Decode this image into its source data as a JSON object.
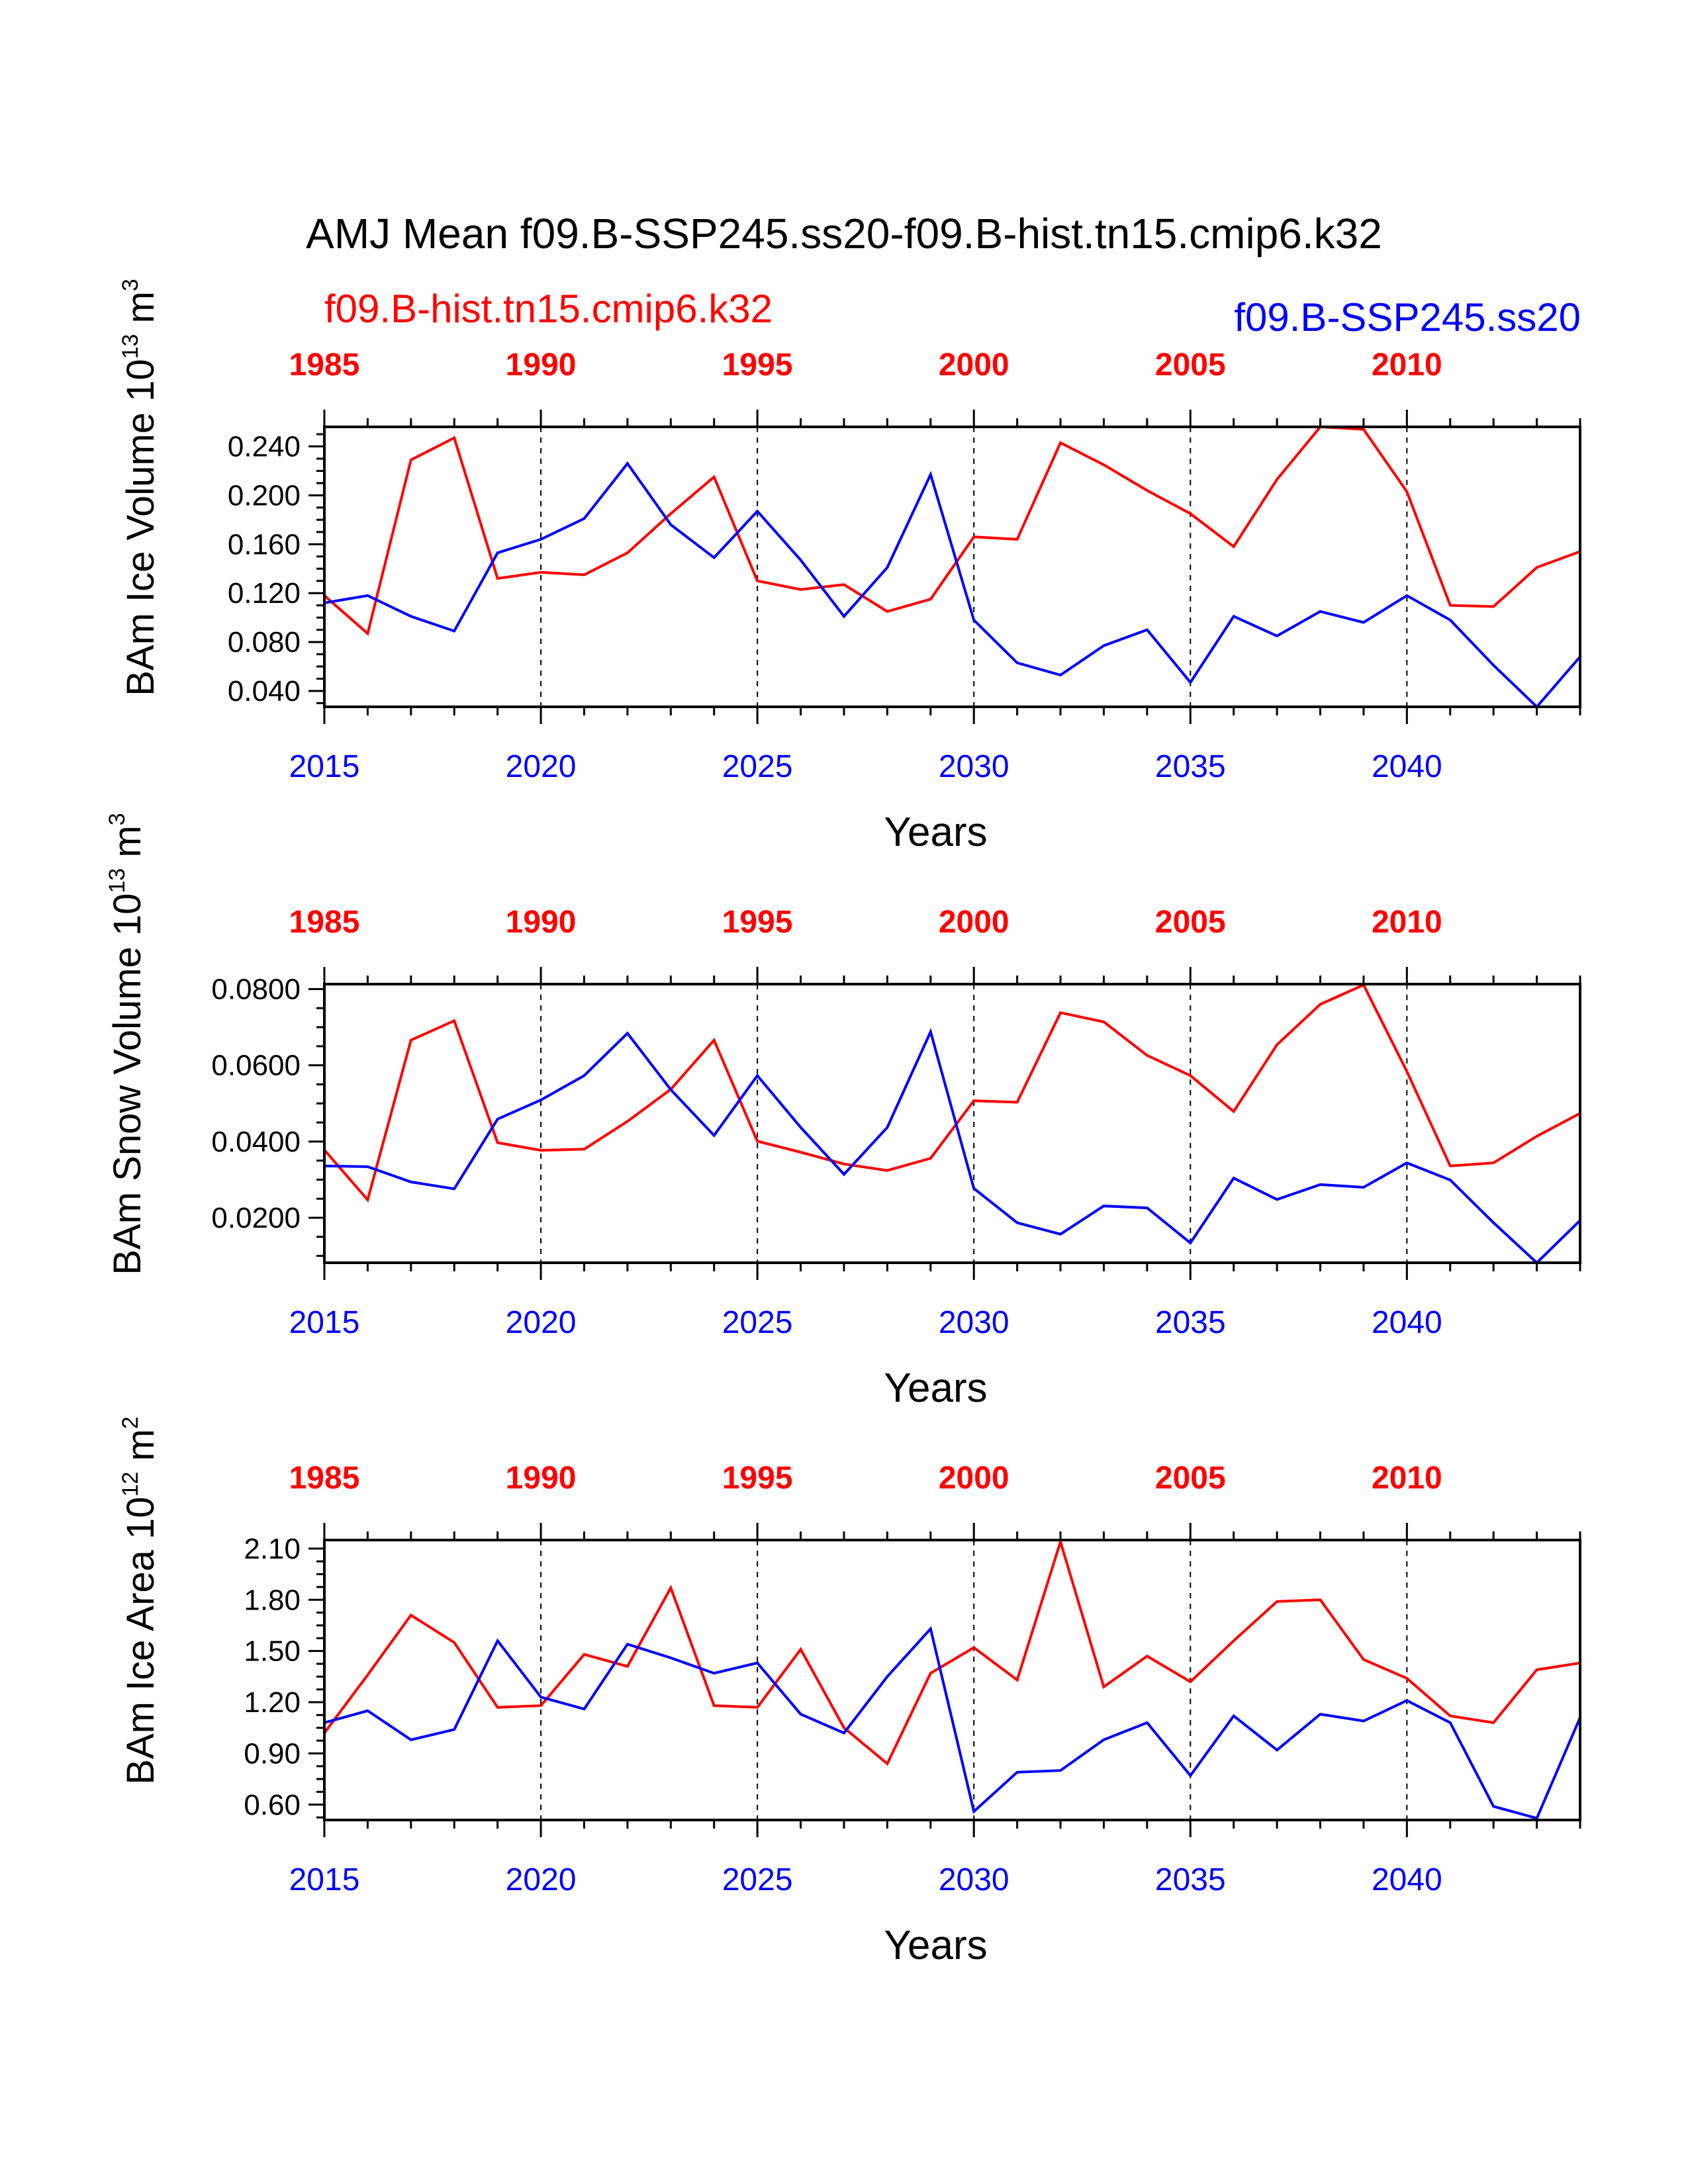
{
  "title": "AMJ Mean f09.B-SSP245.ss20-f09.B-hist.tn15.cmip6.k32",
  "legend": {
    "left": {
      "label": "f09.B-hist.tn15.cmip6.k32",
      "color": "#ff0000"
    },
    "right": {
      "label": "f09.B-SSP245.ss20",
      "color": "#0000ff"
    }
  },
  "chart_data": [
    {
      "type": "line",
      "ylabel": {
        "main": "BAm Ice Volume 10",
        "sup": "13",
        "unit": " m",
        "unit_sup": "3"
      },
      "xlabel": "Years",
      "ylim": [
        0.027,
        0.256
      ],
      "yticks": [
        "0.040",
        "0.080",
        "0.120",
        "0.160",
        "0.200",
        "0.240"
      ],
      "xlim_bottom": [
        2015,
        2044
      ],
      "bottom_ticks": [
        "2015",
        "2020",
        "2025",
        "2030",
        "2035",
        "2040"
      ],
      "top_ticks": [
        "1985",
        "1990",
        "1995",
        "2000",
        "2005",
        "2010"
      ],
      "grid": "dashed vertical at major ticks",
      "series": [
        {
          "name": "f09.B-hist.tn15.cmip6.k32",
          "color": "#ff0000",
          "values": [
            0.118,
            0.087,
            0.229,
            0.247,
            0.132,
            0.137,
            0.135,
            0.153,
            0.185,
            0.215,
            0.13,
            0.123,
            0.127,
            0.105,
            0.115,
            0.166,
            0.164,
            0.243,
            0.225,
            0.204,
            0.185,
            0.158,
            0.213,
            0.256,
            0.254,
            0.203,
            0.11,
            0.109,
            0.141,
            0.154
          ]
        },
        {
          "name": "f09.B-SSP245.ss20",
          "color": "#0000ff",
          "values": [
            0.112,
            0.118,
            0.101,
            0.089,
            0.153,
            0.164,
            0.181,
            0.226,
            0.176,
            0.149,
            0.187,
            0.147,
            0.101,
            0.141,
            0.217,
            0.098,
            0.063,
            0.053,
            0.077,
            0.09,
            0.047,
            0.101,
            0.085,
            0.105,
            0.096,
            0.118,
            0.098,
            0.061,
            0.027,
            0.068
          ]
        }
      ]
    },
    {
      "type": "line",
      "ylabel": {
        "main": "BAm Snow Volume 10",
        "sup": "13",
        "unit": " m",
        "unit_sup": "3"
      },
      "xlabel": "Years",
      "ylim": [
        0.0082,
        0.0813
      ],
      "yticks": [
        "0.0200",
        "0.0400",
        "0.0600",
        "0.0800"
      ],
      "xlim_bottom": [
        2015,
        2044
      ],
      "bottom_ticks": [
        "2015",
        "2020",
        "2025",
        "2030",
        "2035",
        "2040"
      ],
      "top_ticks": [
        "1985",
        "1990",
        "1995",
        "2000",
        "2005",
        "2010"
      ],
      "grid": "dashed vertical at major ticks",
      "series": [
        {
          "name": "f09.B-hist.tn15.cmip6.k32",
          "color": "#ff0000",
          "values": [
            0.0378,
            0.0247,
            0.0666,
            0.0717,
            0.0397,
            0.0377,
            0.038,
            0.0453,
            0.0537,
            0.0666,
            0.0401,
            0.0372,
            0.0341,
            0.0324,
            0.0356,
            0.0507,
            0.0503,
            0.0738,
            0.0714,
            0.0626,
            0.0573,
            0.0479,
            0.0654,
            0.076,
            0.0811,
            0.0584,
            0.0336,
            0.0344,
            0.0414,
            0.0474
          ]
        },
        {
          "name": "f09.B-SSP245.ss20",
          "color": "#0000ff",
          "values": [
            0.0336,
            0.0334,
            0.0294,
            0.0276,
            0.0459,
            0.0509,
            0.0573,
            0.0684,
            0.0536,
            0.0416,
            0.0573,
            0.0437,
            0.0314,
            0.0437,
            0.0688,
            0.0277,
            0.0187,
            0.0157,
            0.0231,
            0.0226,
            0.0134,
            0.0304,
            0.0248,
            0.0287,
            0.028,
            0.0344,
            0.0299,
            0.0187,
            0.0082,
            0.0193
          ]
        }
      ]
    },
    {
      "type": "line",
      "ylabel": {
        "main": "BAm Ice Area 10",
        "sup": "12",
        "unit": " m",
        "unit_sup": "2"
      },
      "xlabel": "Years",
      "ylim": [
        0.51,
        2.15
      ],
      "yticks": [
        "0.60",
        "0.90",
        "1.20",
        "1.50",
        "1.80",
        "2.10"
      ],
      "xlim_bottom": [
        2015,
        2044
      ],
      "bottom_ticks": [
        "2015",
        "2020",
        "2025",
        "2030",
        "2035",
        "2040"
      ],
      "top_ticks": [
        "1985",
        "1990",
        "1995",
        "2000",
        "2005",
        "2010"
      ],
      "grid": "dashed vertical at major ticks",
      "series": [
        {
          "name": "f09.B-hist.tn15.cmip6.k32",
          "color": "#ff0000",
          "values": [
            1.02,
            1.36,
            1.71,
            1.55,
            1.17,
            1.18,
            1.48,
            1.41,
            1.87,
            1.18,
            1.17,
            1.51,
            1.05,
            0.84,
            1.37,
            1.52,
            1.33,
            2.14,
            1.29,
            1.47,
            1.32,
            1.56,
            1.79,
            1.8,
            1.45,
            1.34,
            1.12,
            1.08,
            1.39,
            1.43
          ]
        },
        {
          "name": "f09.B-SSP245.ss20",
          "color": "#0000ff",
          "values": [
            1.08,
            1.15,
            0.98,
            1.04,
            1.56,
            1.23,
            1.16,
            1.54,
            1.46,
            1.37,
            1.43,
            1.13,
            1.02,
            1.35,
            1.63,
            0.56,
            0.79,
            0.8,
            0.98,
            1.08,
            0.77,
            1.12,
            0.92,
            1.13,
            1.09,
            1.21,
            1.08,
            0.59,
            0.52,
            1.11
          ]
        }
      ]
    }
  ]
}
